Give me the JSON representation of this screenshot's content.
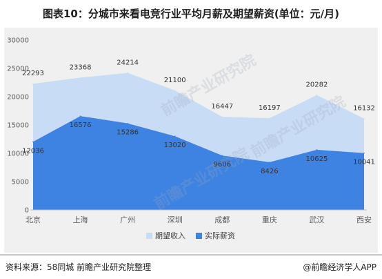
{
  "title": "图表10：分城市来看电竞行业平均月薪及期望薪资(单位：元/月)",
  "source_left": "资料来源：58同城 前瞻产业研究院整理",
  "source_right": "@前瞻经济学人APP",
  "watermark": "前瞻产业研究院",
  "colors": {
    "expected": "#c9dcf6",
    "actual": "#3f83e2",
    "background": "#f0f0f0"
  },
  "chart_data": {
    "type": "area",
    "title": "图表10：分城市来看电竞行业平均月薪及期望薪资(单位：元/月)",
    "xlabel": "",
    "ylabel": "",
    "categories": [
      "北京",
      "上海",
      "广州",
      "深圳",
      "成都",
      "重庆",
      "武汉",
      "西安"
    ],
    "series": [
      {
        "name": "期望收入",
        "values": [
          22293,
          23368,
          24214,
          21100,
          16447,
          16197,
          20282,
          16132
        ]
      },
      {
        "name": "实际薪资",
        "values": [
          12036,
          16576,
          15286,
          13020,
          9606,
          8426,
          10625,
          10041
        ]
      }
    ],
    "ylim": [
      0,
      30000
    ],
    "yticks": [
      "0",
      "5000",
      "10000",
      "15000",
      "20000",
      "25000",
      "30000"
    ],
    "grid": false,
    "legend": "bottom"
  }
}
